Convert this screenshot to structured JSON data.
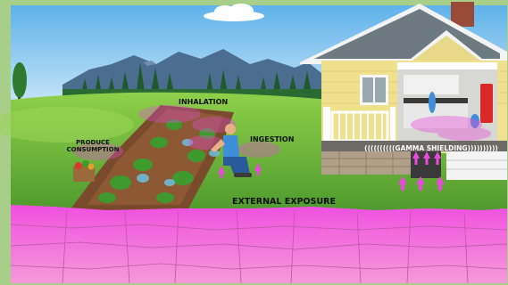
{
  "labels": {
    "inhalation": "INHALATION",
    "produce_line1": "PRODUCE",
    "produce_line2": "CONSUMPTION",
    "ingestion": "INGESTION",
    "external_exposure": "EXTERNAL EXPOSURE",
    "gamma_shielding": "((((((((((GAMMA SHIELDING))))))))))"
  },
  "colors": {
    "sky": "#8ec8ef",
    "mountains": "#4a6a8c",
    "grass": "#6fb83c",
    "soil": "#7a4a2c",
    "contamination": "#e94ad9",
    "house_siding": "#f0e18e",
    "house_trim": "#ffffff",
    "border": "#a8cf8a"
  },
  "icons": {
    "person": "kneeling-gardener-icon",
    "house": "house-icon",
    "basket": "produce-basket-icon"
  }
}
